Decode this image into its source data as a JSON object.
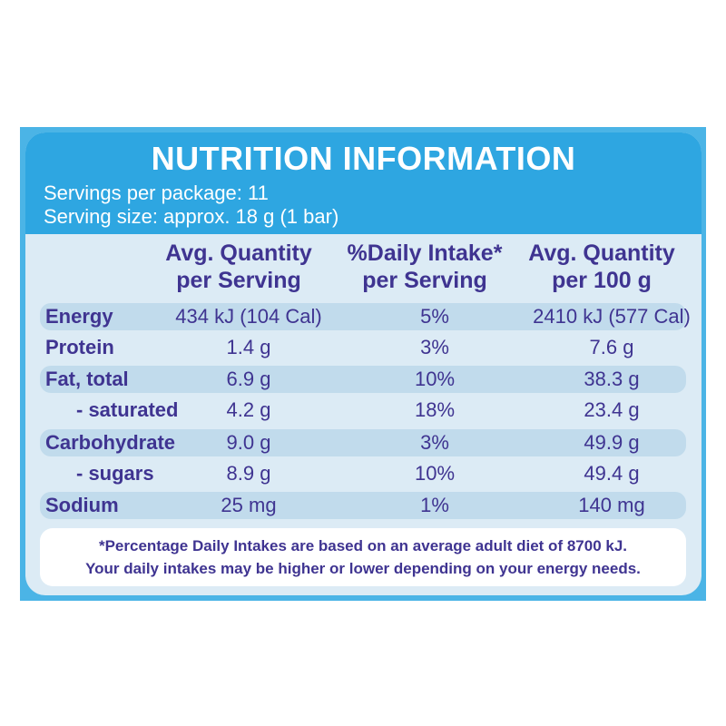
{
  "title": "NUTRITION INFORMATION",
  "servings_per_package": "Servings per package: 11",
  "serving_size": "Serving size: approx. 18 g (1 bar)",
  "columns": [
    {
      "line1": "Avg. Quantity",
      "line2": "per Serving"
    },
    {
      "line1": "%Daily Intake*",
      "line2": "per Serving"
    },
    {
      "line1": "Avg. Quantity",
      "line2": "per 100 g"
    }
  ],
  "rows": [
    {
      "label": "Energy",
      "per_serving": "434 kJ (104 Cal)",
      "daily_intake": "5%",
      "per_100g": "2410 kJ (577 Cal)"
    },
    {
      "label": "Protein",
      "per_serving": "1.4 g",
      "daily_intake": "3%",
      "per_100g": "7.6 g"
    },
    {
      "label": "Fat, total",
      "per_serving": "6.9 g",
      "daily_intake": "10%",
      "per_100g": "38.3 g"
    },
    {
      "label": "- saturated",
      "per_serving": "4.2 g",
      "daily_intake": "18%",
      "per_100g": "23.4 g"
    },
    {
      "label": "Carbohydrate",
      "per_serving": "9.0 g",
      "daily_intake": "3%",
      "per_100g": "49.9 g"
    },
    {
      "label": "- sugars",
      "per_serving": "8.9 g",
      "daily_intake": "10%",
      "per_100g": "49.4 g"
    },
    {
      "label": "Sodium",
      "per_serving": "25 mg",
      "daily_intake": "1%",
      "per_100g": "140 mg"
    }
  ],
  "footnote": {
    "line1": "*Percentage Daily Intakes are based on an average adult diet of 8700 kJ.",
    "line2": "Your daily intakes may be higher or lower depending on your energy needs."
  },
  "colors": {
    "header_blue": "#2ea6e1",
    "card_background": "#dcebf5",
    "row_shade": "#c1dbec",
    "text_purple": "#3f3491"
  }
}
